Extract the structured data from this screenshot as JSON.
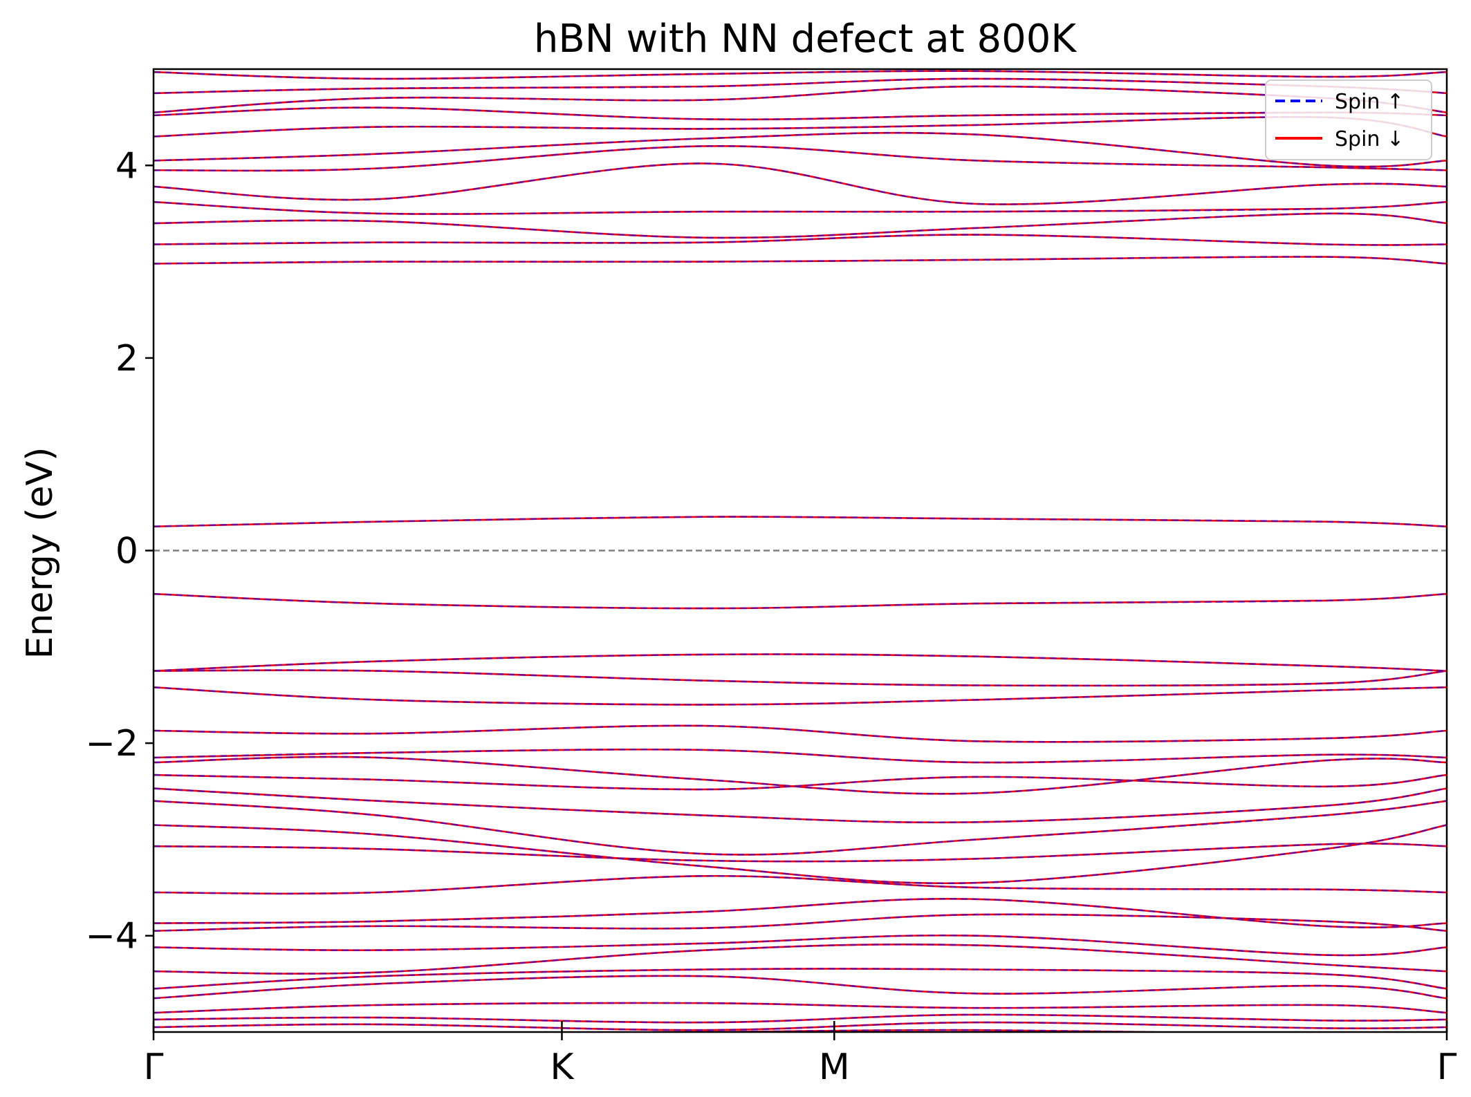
{
  "chart_data": {
    "type": "line",
    "title": "hBN with NN defect at 800K",
    "xlabel": "",
    "ylabel": "Energy (eV)",
    "ylim": [
      -5,
      5
    ],
    "x_kpath": [
      0,
      1,
      1.667,
      3.167
    ],
    "xtick_labels": [
      "Γ",
      "K",
      "M",
      "Γ"
    ],
    "yticks": [
      -4,
      -2,
      0,
      2,
      4
    ],
    "ytick_labels": [
      "−4",
      "−2",
      "0",
      "2",
      "4"
    ],
    "fermi_level": 0,
    "grid": false,
    "legend_placement": "top-right",
    "colors": {
      "spin_up": "#0000ff",
      "spin_down": "#ff0000",
      "fermi": "#808080"
    },
    "series": [
      {
        "name": "Spin ↑",
        "style": "dashed",
        "color": "#0000ff"
      },
      {
        "name": "Spin ↓",
        "style": "solid",
        "color": "#ff0000"
      }
    ],
    "bands": [
      [
        -5.05,
        -5.02,
        -5.0,
        -4.98,
        -5.03,
        -5.05
      ],
      [
        -4.95,
        -4.92,
        -4.98,
        -4.9,
        -4.96,
        -4.95
      ],
      [
        -4.87,
        -4.85,
        -4.9,
        -4.82,
        -4.88,
        -4.87
      ],
      [
        -4.8,
        -4.72,
        -4.7,
        -4.75,
        -4.72,
        -4.8
      ],
      [
        -4.65,
        -4.5,
        -4.42,
        -4.6,
        -4.52,
        -4.65
      ],
      [
        -4.55,
        -4.42,
        -4.35,
        -4.35,
        -4.4,
        -4.55
      ],
      [
        -4.37,
        -4.38,
        -4.15,
        -4.1,
        -4.3,
        -4.37
      ],
      [
        -4.12,
        -4.15,
        -4.08,
        -4.0,
        -4.2,
        -4.12
      ],
      [
        -3.95,
        -3.9,
        -3.92,
        -3.78,
        -3.85,
        -3.95
      ],
      [
        -3.87,
        -3.85,
        -3.75,
        -3.62,
        -3.9,
        -3.87
      ],
      [
        -3.55,
        -3.55,
        -3.38,
        -3.5,
        -3.52,
        -3.55
      ],
      [
        -3.07,
        -3.1,
        -3.22,
        -3.2,
        -3.05,
        -3.07
      ],
      [
        -2.85,
        -2.95,
        -3.28,
        -3.45,
        -3.1,
        -2.85
      ],
      [
        -2.6,
        -2.75,
        -3.15,
        -3.0,
        -2.75,
        -2.6
      ],
      [
        -2.47,
        -2.6,
        -2.75,
        -2.82,
        -2.65,
        -2.47
      ],
      [
        -2.33,
        -2.38,
        -2.48,
        -2.35,
        -2.45,
        -2.33
      ],
      [
        -2.2,
        -2.15,
        -2.38,
        -2.52,
        -2.18,
        -2.2
      ],
      [
        -2.15,
        -2.1,
        -2.07,
        -2.2,
        -2.12,
        -2.15
      ],
      [
        -1.87,
        -1.9,
        -1.82,
        -1.98,
        -1.95,
        -1.87
      ],
      [
        -1.42,
        -1.55,
        -1.6,
        -1.55,
        -1.45,
        -1.42
      ],
      [
        -1.25,
        -1.25,
        -1.35,
        -1.4,
        -1.38,
        -1.25
      ],
      [
        -1.25,
        -1.15,
        -1.08,
        -1.1,
        -1.2,
        -1.25
      ],
      [
        -0.45,
        -0.55,
        -0.6,
        -0.55,
        -0.52,
        -0.45
      ],
      [
        0.25,
        0.3,
        0.35,
        0.33,
        0.3,
        0.25
      ],
      [
        2.98,
        3.0,
        3.0,
        3.02,
        3.05,
        2.98
      ],
      [
        3.18,
        3.2,
        3.2,
        3.28,
        3.18,
        3.18
      ],
      [
        3.4,
        3.42,
        3.25,
        3.35,
        3.5,
        3.4
      ],
      [
        3.62,
        3.5,
        3.52,
        3.52,
        3.55,
        3.62
      ],
      [
        3.78,
        3.65,
        4.02,
        3.6,
        3.8,
        3.78
      ],
      [
        3.95,
        3.97,
        4.2,
        4.05,
        3.98,
        3.95
      ],
      [
        4.05,
        4.12,
        4.28,
        4.32,
        4.0,
        4.05
      ],
      [
        4.3,
        4.4,
        4.38,
        4.42,
        4.5,
        4.3
      ],
      [
        4.52,
        4.6,
        4.48,
        4.52,
        4.55,
        4.52
      ],
      [
        4.55,
        4.7,
        4.68,
        4.82,
        4.7,
        4.55
      ],
      [
        4.75,
        4.8,
        4.82,
        4.9,
        4.82,
        4.75
      ],
      [
        4.97,
        4.9,
        4.95,
        4.98,
        4.92,
        4.97
      ]
    ]
  }
}
